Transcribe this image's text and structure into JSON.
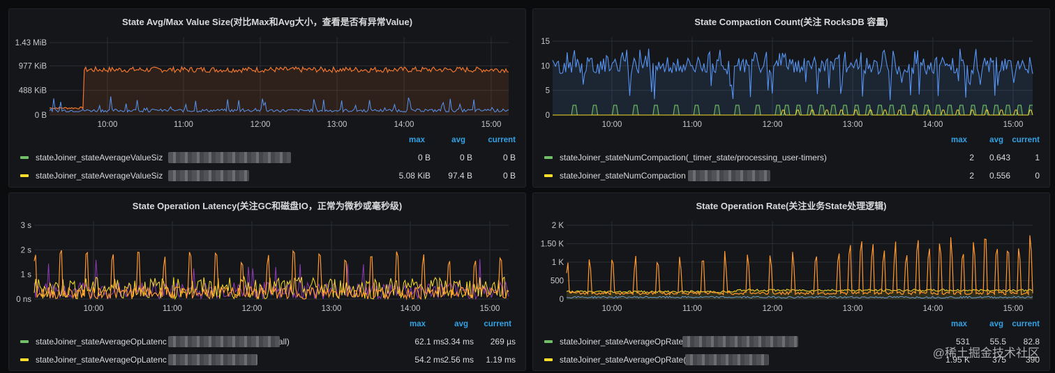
{
  "panels": [
    {
      "id": "p1",
      "title": "State Avg/Max Value Size(对比Max和Avg大小，查看是否有异常Value)",
      "legend_headers": {
        "max": "max",
        "avg": "avg",
        "current": "current"
      },
      "legend": [
        {
          "name": "stateJoiner_stateAverageValueSiz",
          "color": "#73bf69",
          "max": "0 B",
          "avg": "0 B",
          "current": "0 B"
        },
        {
          "name": "stateJoiner_stateAverageValueSiz",
          "color": "#fade2a",
          "max": "5.08 KiB",
          "avg": "97.4 B",
          "current": "0 B"
        }
      ]
    },
    {
      "id": "p2",
      "title": "State Compaction Count(关注 RocksDB 容量)",
      "legend_headers": {
        "max": "max",
        "avg": "avg",
        "current": "current"
      },
      "legend": [
        {
          "name": "stateJoiner_stateNumCompaction(_timer_state/processing_user-timers)",
          "color": "#73bf69",
          "max": "2",
          "avg": "0.643",
          "current": "1"
        },
        {
          "name": "stateJoiner_stateNumCompaction",
          "color": "#fade2a",
          "max": "2",
          "avg": "0.556",
          "current": "0"
        }
      ]
    },
    {
      "id": "p3",
      "title": "State Operation Latency(关注GC和磁盘IO，正常为微秒或毫秒级)",
      "legend_headers": {
        "max": "max",
        "avg": "avg",
        "current": "current"
      },
      "legend": [
        {
          "name": "stateJoiner_stateAverageOpLatenc",
          "suffix": "all)",
          "color": "#73bf69",
          "max": "62.1 ms",
          "avg": "3.34 ms",
          "current": "269 µs"
        },
        {
          "name": "stateJoiner_stateAverageOpLatenc",
          "suffix": "",
          "color": "#fade2a",
          "max": "54.2 ms",
          "avg": "2.56 ms",
          "current": "1.19 ms"
        }
      ]
    },
    {
      "id": "p4",
      "title": "State Operation Rate(关注业务State处理逻辑)",
      "legend_headers": {
        "max": "max",
        "avg": "avg",
        "current": "current"
      },
      "legend": [
        {
          "name": "stateJoiner_stateAverageOpRate",
          "color": "#73bf69",
          "max": "531",
          "avg": "55.5",
          "current": "82.8"
        },
        {
          "name": "stateJoiner_stateAverageOpRate(",
          "color": "#fade2a",
          "max": "1.95 K",
          "avg": "375",
          "current": "390"
        }
      ]
    }
  ],
  "watermark": "@稀土掘金技术社区",
  "chart_data": [
    {
      "type": "line",
      "title": "State Avg/Max Value Size(对比Max和Avg大小，查看是否有异常Value)",
      "x_ticks": [
        "10:00",
        "11:00",
        "12:00",
        "13:00",
        "14:00",
        "15:00"
      ],
      "y_ticks": [
        "0 B",
        "488 KiB",
        "977 KiB",
        "1.43 MiB"
      ],
      "ylim_kib": [
        0,
        1465
      ],
      "series": [
        {
          "color": "#f2762e",
          "approx_level_kib": 900,
          "note_start_kib": 120
        },
        {
          "color": "#5794f2",
          "approx_level_kib": 60
        }
      ]
    },
    {
      "type": "line",
      "title": "State Compaction Count(关注 RocksDB 容量)",
      "x_ticks": [
        "10:00",
        "11:00",
        "12:00",
        "13:00",
        "14:00",
        "15:00"
      ],
      "y_ticks": [
        "0",
        "5",
        "10",
        "15"
      ],
      "ylim": [
        0,
        15
      ],
      "series": [
        {
          "color": "#5794f2",
          "approx_level": 10
        },
        {
          "color": "#73bf69",
          "approx_level": 2
        },
        {
          "color": "#fade2a",
          "approx_level": 1
        }
      ]
    },
    {
      "type": "line",
      "title": "State Operation Latency(关注GC和磁盘IO，正常为微秒或毫秒级)",
      "x_ticks": [
        "10:00",
        "11:00",
        "12:00",
        "13:00",
        "14:00",
        "15:00"
      ],
      "y_ticks": [
        "0 ns",
        "1 s",
        "2 s",
        "3 s"
      ],
      "ylim_s": [
        0,
        3
      ],
      "series": [
        {
          "color": "#ff9830",
          "approx_peak_s": 1.9
        },
        {
          "color": "#fade2a",
          "approx_peak_s": 0.9
        },
        {
          "color": "#8f3bb8",
          "approx_peak_s": 0.7
        }
      ]
    },
    {
      "type": "line",
      "title": "State Operation Rate(关注业务State处理逻辑)",
      "x_ticks": [
        "10:00",
        "11:00",
        "12:00",
        "13:00",
        "14:00",
        "15:00"
      ],
      "y_ticks": [
        "0",
        "500",
        "1 K",
        "1.50 K",
        "2 K"
      ],
      "ylim": [
        0,
        2000
      ],
      "series": [
        {
          "color": "#ff9830",
          "approx_peak": 1200
        },
        {
          "color": "#fade2a",
          "approx_level": 200
        },
        {
          "color": "#5794f2",
          "approx_level": 50
        }
      ]
    }
  ]
}
